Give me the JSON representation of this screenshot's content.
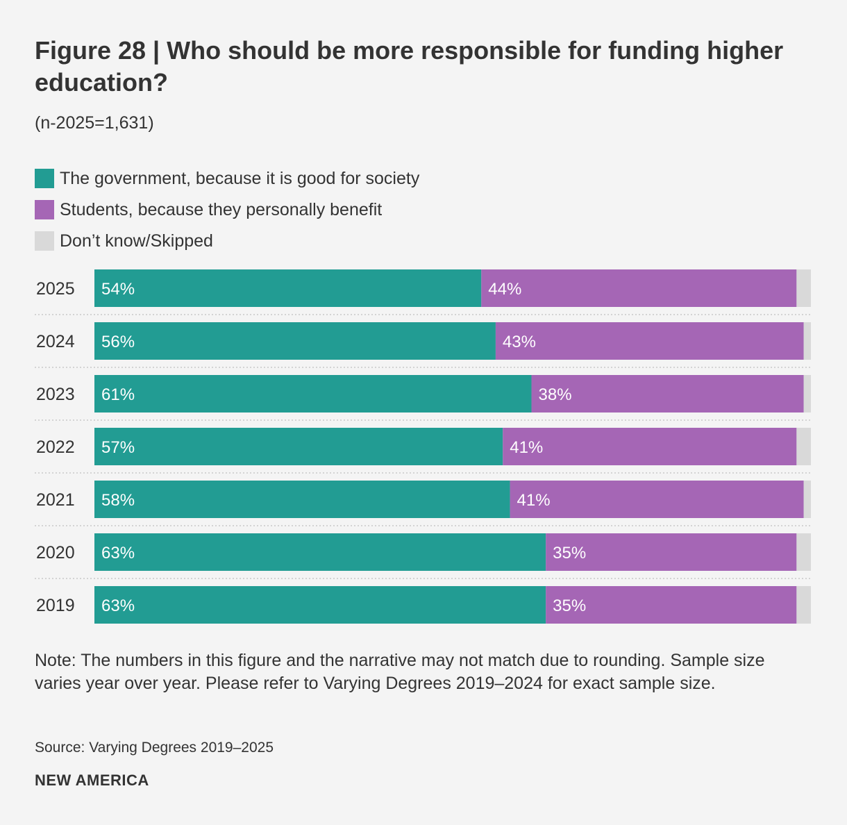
{
  "header": {
    "title": "Figure 28 | Who should be more responsible for funding higher education?",
    "subtitle": "(n-2025=1,631)"
  },
  "legend": [
    {
      "label": "The government, because it is good for society",
      "color": "#229c93"
    },
    {
      "label": "Students, because they personally benefit",
      "color": "#a566b5"
    },
    {
      "label": "Don’t know/Skipped",
      "color": "#d9d9d9"
    }
  ],
  "chart_data": {
    "type": "bar",
    "orientation": "horizontal",
    "stacked": true,
    "categories": [
      "2025",
      "2024",
      "2023",
      "2022",
      "2021",
      "2020",
      "2019"
    ],
    "series": [
      {
        "name": "The government, because it is good for society",
        "values": [
          54,
          56,
          61,
          57,
          58,
          63,
          63
        ],
        "labels": [
          "54%",
          "56%",
          "61%",
          "57%",
          "58%",
          "63%",
          "63%"
        ],
        "color": "#229c93"
      },
      {
        "name": "Students, because they personally benefit",
        "values": [
          44,
          43,
          38,
          41,
          41,
          35,
          35
        ],
        "labels": [
          "44%",
          "43%",
          "38%",
          "41%",
          "41%",
          "35%",
          "35%"
        ],
        "color": "#a566b5"
      },
      {
        "name": "Don’t know/Skipped",
        "values": [
          2,
          1,
          1,
          2,
          1,
          2,
          2
        ],
        "labels": [
          "",
          "",
          "",
          "",
          "",
          "",
          ""
        ],
        "color": "#d9d9d9"
      }
    ],
    "xlim": [
      0,
      100
    ],
    "legend_position": "top-left",
    "grid": false
  },
  "footer": {
    "note": "Note: The numbers in this figure and the narrative may not match due to rounding. Sample size varies year over year. Please refer to Varying Degrees 2019–2024 for exact sample size.",
    "source": "Source: Varying Degrees 2019–2025",
    "brand": "NEW AMERICA"
  }
}
